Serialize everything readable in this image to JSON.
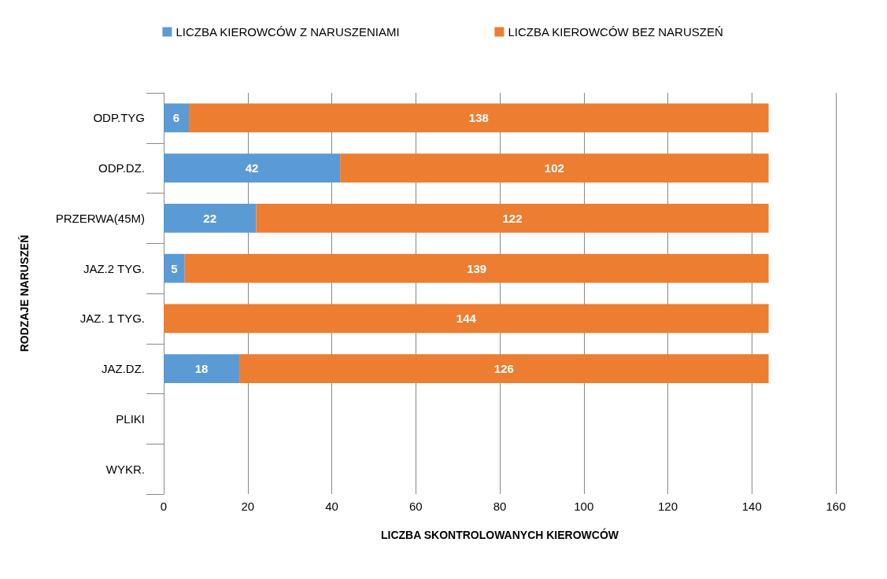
{
  "chart_data": {
    "type": "bar",
    "orientation": "horizontal",
    "stacked": true,
    "data_labels": true,
    "grid": "x",
    "legend": "top",
    "xlabel": "LICZBA SKONTROLOWANYCH KIEROWCÓW",
    "ylabel": "RODZAJE NARUSZEŃ",
    "categories": [
      "ODP.TYG",
      "ODP.DZ.",
      "PRZERWA(45M)",
      "JAZ.2 TYG.",
      "JAZ. 1 TYG.",
      "JAZ.DZ.",
      "PLIKI",
      "WYKR."
    ],
    "xlim": [
      0,
      160
    ],
    "xticks": [
      0,
      20,
      40,
      60,
      80,
      100,
      120,
      140,
      160
    ],
    "series": [
      {
        "name": "LICZBA KIEROWCÓW Z NARUSZENIAMI",
        "color": "#5b9bd5",
        "values": [
          6,
          42,
          22,
          5,
          null,
          18,
          null,
          null
        ]
      },
      {
        "name": "LICZBA KIEROWCÓW BEZ NARUSZEŃ",
        "color": "#ed7d31",
        "values": [
          138,
          102,
          122,
          139,
          144,
          126,
          null,
          null
        ]
      }
    ]
  }
}
